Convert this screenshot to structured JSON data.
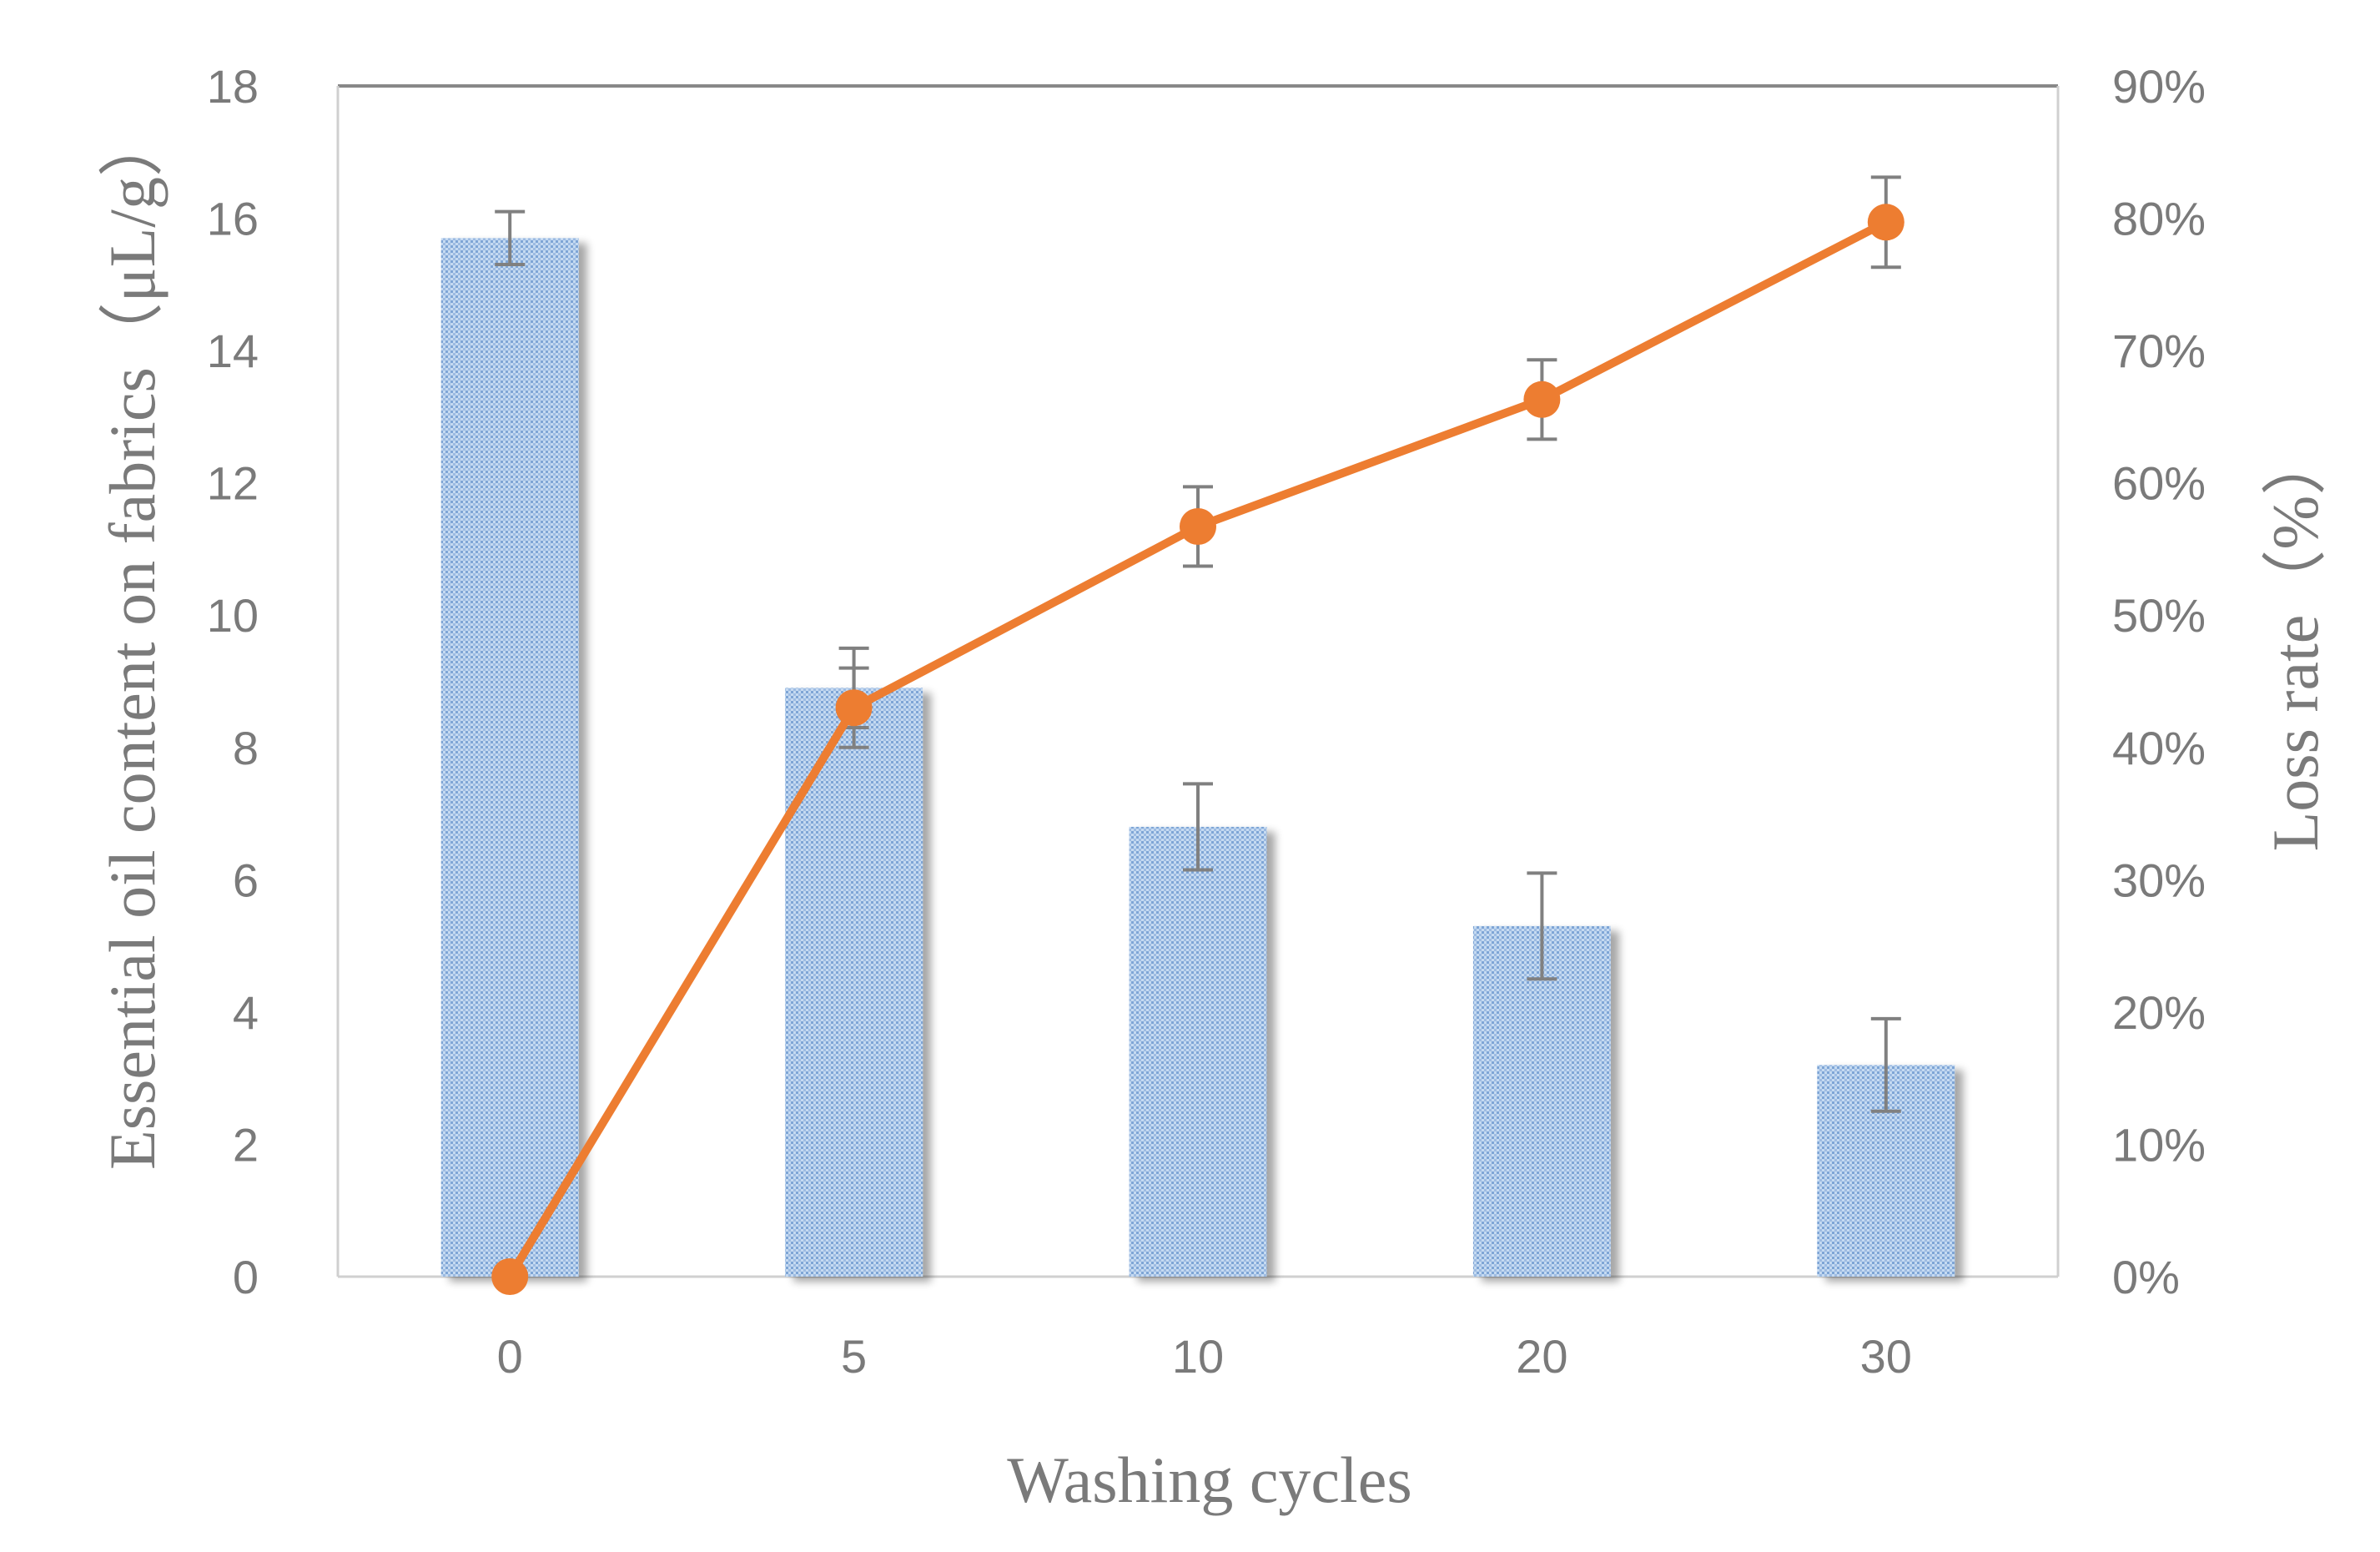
{
  "chart_data": {
    "type": "bar",
    "title": "",
    "categories": [
      "0",
      "5",
      "10",
      "20",
      "30"
    ],
    "xlabel": "Washing cycles",
    "ylabel": "Essential oil content on fabrics（μL/g）",
    "ylabel_right": "Loss rate（%）",
    "ylim": [
      0,
      18
    ],
    "yticks": [
      0,
      2,
      4,
      6,
      8,
      10,
      12,
      14,
      16,
      18
    ],
    "ylim_right": [
      0,
      0.9
    ],
    "yticks_right_labels": [
      "0%",
      "10%",
      "20%",
      "30%",
      "40%",
      "50%",
      "60%",
      "70%",
      "80%",
      "90%"
    ],
    "grid": false,
    "series": [
      {
        "name": "Essential oil content",
        "type": "bar",
        "axis": "left",
        "values": [
          15.7,
          8.9,
          6.8,
          5.3,
          3.2
        ],
        "error": [
          0.4,
          0.6,
          0.65,
          0.8,
          0.7
        ],
        "color": "#a9c6e8"
      },
      {
        "name": "Loss rate",
        "type": "line",
        "axis": "right",
        "values": [
          0.0,
          0.43,
          0.567,
          0.663,
          0.797
        ],
        "error": [
          0.0,
          0.03,
          0.03,
          0.03,
          0.034
        ],
        "color": "#ed7d31"
      }
    ],
    "colors": {
      "axis": "#d0d0d0",
      "top_border": "#888888",
      "error_bar": "#808080",
      "text": "#7a7a7a"
    }
  }
}
